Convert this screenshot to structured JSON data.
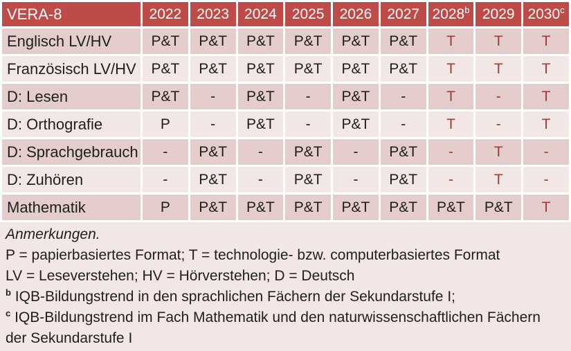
{
  "title": "VERA-8",
  "columns": [
    {
      "label": "2022",
      "sup": ""
    },
    {
      "label": "2023",
      "sup": ""
    },
    {
      "label": "2024",
      "sup": ""
    },
    {
      "label": "2025",
      "sup": ""
    },
    {
      "label": "2026",
      "sup": ""
    },
    {
      "label": "2027",
      "sup": ""
    },
    {
      "label": "2028",
      "sup": "b"
    },
    {
      "label": "2029",
      "sup": ""
    },
    {
      "label": "2030",
      "sup": "c"
    }
  ],
  "rows": [
    {
      "label": "Englisch LV/HV",
      "cells": [
        {
          "t": "P&T",
          "red": false
        },
        {
          "t": "P&T",
          "red": false
        },
        {
          "t": "P&T",
          "red": false
        },
        {
          "t": "P&T",
          "red": false
        },
        {
          "t": "P&T",
          "red": false
        },
        {
          "t": "P&T",
          "red": false
        },
        {
          "t": "T",
          "red": true
        },
        {
          "t": "T",
          "red": true
        },
        {
          "t": "T",
          "red": true
        }
      ]
    },
    {
      "label": "Französisch LV/HV",
      "cells": [
        {
          "t": "P&T",
          "red": false
        },
        {
          "t": "P&T",
          "red": false
        },
        {
          "t": "P&T",
          "red": false
        },
        {
          "t": "P&T",
          "red": false
        },
        {
          "t": "P&T",
          "red": false
        },
        {
          "t": "P&T",
          "red": false
        },
        {
          "t": "T",
          "red": true
        },
        {
          "t": "T",
          "red": true
        },
        {
          "t": "T",
          "red": true
        }
      ]
    },
    {
      "label": "D: Lesen",
      "cells": [
        {
          "t": "P&T",
          "red": false
        },
        {
          "t": "-",
          "red": false
        },
        {
          "t": "P&T",
          "red": false
        },
        {
          "t": "-",
          "red": false
        },
        {
          "t": "P&T",
          "red": false
        },
        {
          "t": "-",
          "red": false
        },
        {
          "t": "T",
          "red": true
        },
        {
          "t": "-",
          "red": true
        },
        {
          "t": "T",
          "red": true
        }
      ]
    },
    {
      "label": "D: Orthografie",
      "cells": [
        {
          "t": "P",
          "red": false
        },
        {
          "t": "-",
          "red": false
        },
        {
          "t": "P&T",
          "red": false
        },
        {
          "t": "-",
          "red": false
        },
        {
          "t": "P&T",
          "red": false
        },
        {
          "t": "-",
          "red": false
        },
        {
          "t": "T",
          "red": true
        },
        {
          "t": "-",
          "red": true
        },
        {
          "t": "T",
          "red": true
        }
      ]
    },
    {
      "label": "D: Sprachgebrauch",
      "cells": [
        {
          "t": "-",
          "red": false
        },
        {
          "t": "P&T",
          "red": false
        },
        {
          "t": "-",
          "red": false
        },
        {
          "t": "P&T",
          "red": false
        },
        {
          "t": "-",
          "red": false
        },
        {
          "t": "P&T",
          "red": false
        },
        {
          "t": "-",
          "red": true
        },
        {
          "t": "T",
          "red": true
        },
        {
          "t": "-",
          "red": true
        }
      ]
    },
    {
      "label": "D: Zuhören",
      "cells": [
        {
          "t": "-",
          "red": false
        },
        {
          "t": "P&T",
          "red": false
        },
        {
          "t": "-",
          "red": false
        },
        {
          "t": "P&T",
          "red": false
        },
        {
          "t": "-",
          "red": false
        },
        {
          "t": "P&T",
          "red": false
        },
        {
          "t": "-",
          "red": true
        },
        {
          "t": "T",
          "red": true
        },
        {
          "t": "-",
          "red": true
        }
      ]
    },
    {
      "label": "Mathematik",
      "cells": [
        {
          "t": "P",
          "red": false
        },
        {
          "t": "P&T",
          "red": false
        },
        {
          "t": "P&T",
          "red": false
        },
        {
          "t": "P&T",
          "red": false
        },
        {
          "t": "P&T",
          "red": false
        },
        {
          "t": "P&T",
          "red": false
        },
        {
          "t": "P&T",
          "red": false
        },
        {
          "t": "P&T",
          "red": false
        },
        {
          "t": "T",
          "red": true
        }
      ]
    }
  ],
  "notes": {
    "lines": [
      {
        "sup": "",
        "text": "Anmerkungen.",
        "italic": true
      },
      {
        "sup": "",
        "text": "P = papierbasiertes Format; T = technologie- bzw. computerbasiertes Format",
        "italic": false
      },
      {
        "sup": "",
        "text": "LV = Leseverstehen; HV = Hörverstehen; D = Deutsch",
        "italic": false
      },
      {
        "sup": "b",
        "text": "IQB-Bildungstrend in den sprachlichen Fächern der Sekundarstufe I;",
        "italic": false
      },
      {
        "sup": "c",
        "text": "IQB-Bildungstrend im Fach Mathematik und den naturwissenschaftlichen Fächern der Sekundarstufe I",
        "italic": false
      }
    ]
  },
  "colors": {
    "header_bg": "#BE4B48",
    "band_dark": "#E5CDCC",
    "band_light": "#F3E7E6",
    "accent_text": "#A03B38",
    "text": "#1E1E1E"
  }
}
